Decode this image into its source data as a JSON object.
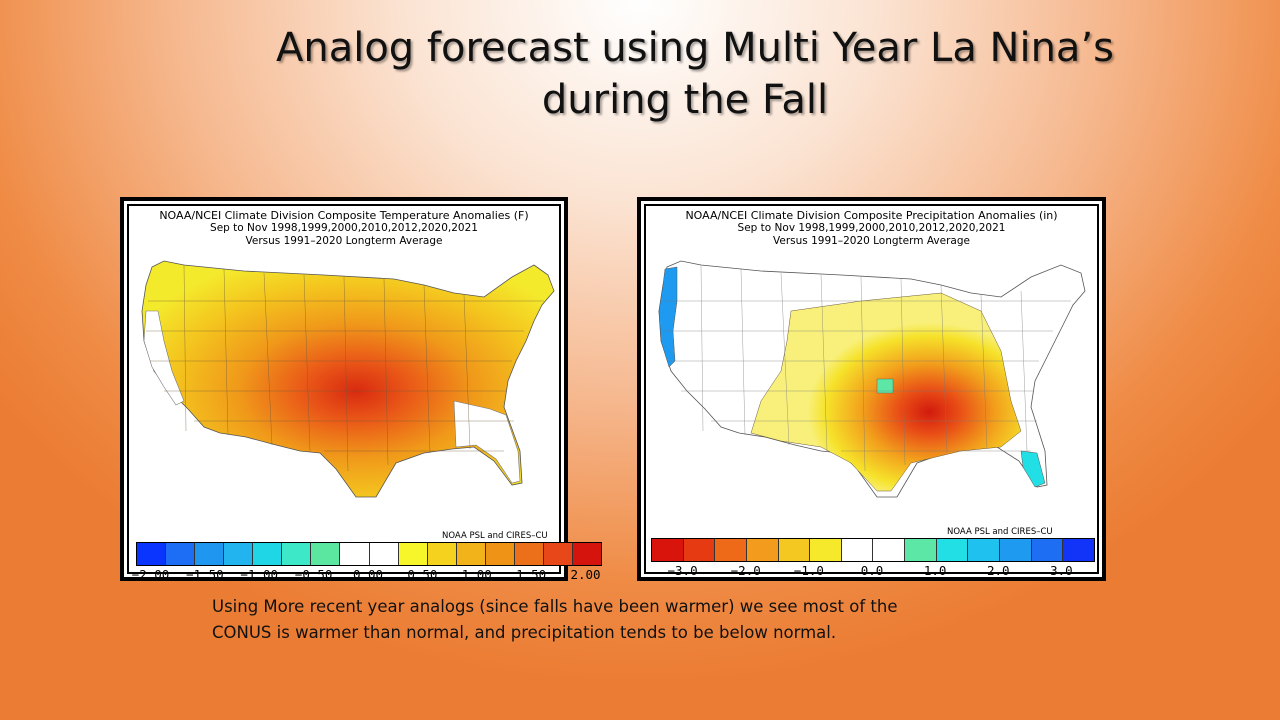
{
  "slide": {
    "title_line1": "Analog forecast using Multi Year La Nina’s",
    "title_line2": "during the Fall",
    "caption": "Using More recent year analogs (since falls have been warmer) we see most of the CONUS is warmer than normal, and precipitation tends to be below normal."
  },
  "temp_map": {
    "header1": "NOAA/NCEI Climate Division Composite Temperature Anomalies (F)",
    "header2": "Sep to Nov  1998,1999,2000,2010,2012,2020,2021",
    "header3": "Versus 1991–2020 Longterm Average",
    "credit": "NOAA PSL and CIRES–CU",
    "colors": [
      "#0a35ff",
      "#1e6ef5",
      "#1f97f0",
      "#21b4ee",
      "#1fd6e6",
      "#3ce8c8",
      "#5ce7a0",
      "#ffffff",
      "#ffffff",
      "#f6f62a",
      "#f4d21e",
      "#f2b21a",
      "#ef9317",
      "#ec7019",
      "#e8471a",
      "#d4140d"
    ],
    "ticks": [
      "−2.00",
      "−1.50",
      "−1.00",
      "−0.50",
      "0.00",
      "0.50",
      "1.00",
      "1.50",
      "2.00"
    ]
  },
  "precip_map": {
    "header1": "NOAA/NCEI Climate Division Composite Precipitation Anomalies (in)",
    "header2": "Sep to Nov  1998,1999,2000,2010,2012,2020,2021",
    "header3": "Versus 1991–2020 Longterm Average",
    "credit": "NOAA PSL and CIRES–CU",
    "colors": [
      "#d8140c",
      "#e63a12",
      "#ee6a18",
      "#f29b1c",
      "#f4c820",
      "#f6e82a",
      "#ffffff",
      "#ffffff",
      "#5ce7a6",
      "#21dfe4",
      "#1fc2ee",
      "#1e9bf0",
      "#1d6ef2",
      "#1234f8"
    ],
    "ticks": [
      "−3.0",
      "−2.0",
      "−1.0",
      "0.0",
      "1.0",
      "2.0",
      "3.0"
    ]
  }
}
